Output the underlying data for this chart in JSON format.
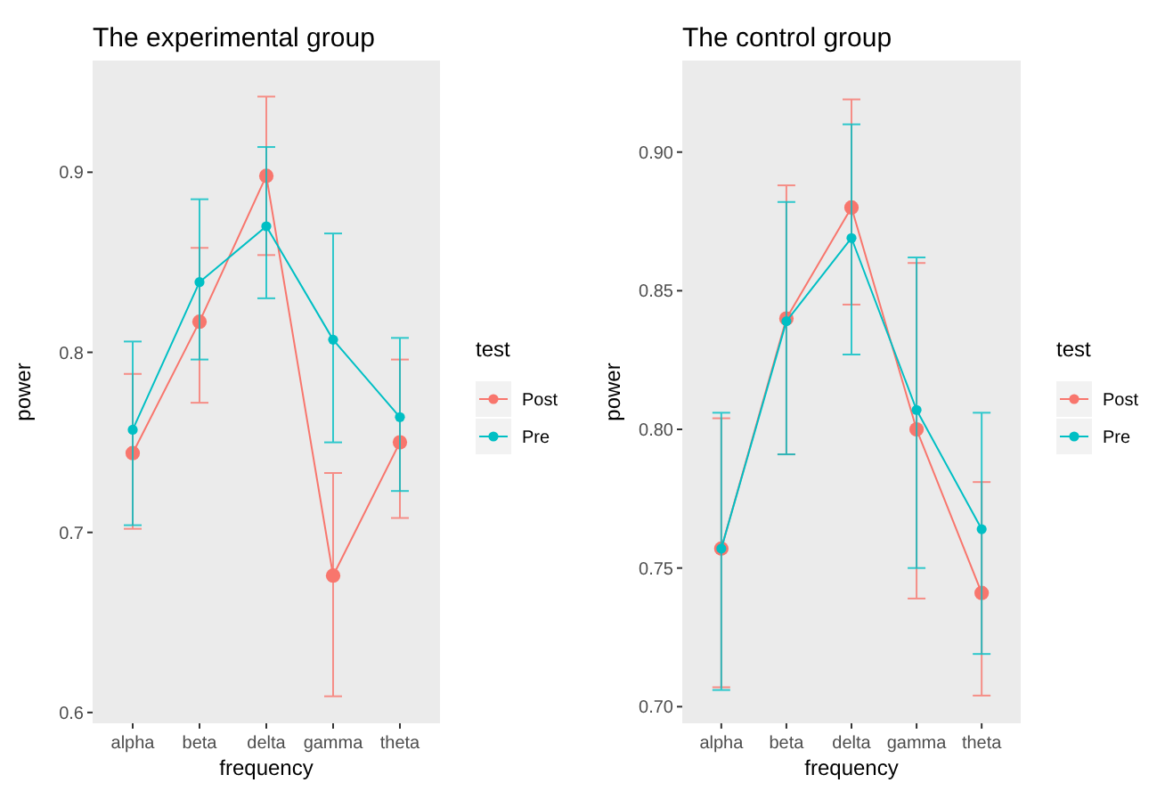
{
  "chart_data": [
    {
      "type": "line",
      "title": "The experimental group",
      "xlabel": "frequency",
      "ylabel": "power",
      "legend_title": "test",
      "legend": "right",
      "marker": "circle",
      "grid": false,
      "categories": [
        "alpha",
        "beta",
        "delta",
        "gamma",
        "theta"
      ],
      "ylim": [
        0.594,
        0.962
      ],
      "yticks": [
        {
          "value": 0.6,
          "label": "0.6"
        },
        {
          "value": 0.7,
          "label": "0.7"
        },
        {
          "value": 0.8,
          "label": "0.8"
        },
        {
          "value": 0.9,
          "label": "0.9"
        }
      ],
      "series": [
        {
          "name": "Post",
          "color": "#f8766d",
          "values": [
            0.744,
            0.817,
            0.898,
            0.676,
            0.75
          ],
          "errors": [
            [
              0.702,
              0.788
            ],
            [
              0.772,
              0.858
            ],
            [
              0.854,
              0.942
            ],
            [
              0.609,
              0.733
            ],
            [
              0.708,
              0.796
            ]
          ]
        },
        {
          "name": "Pre",
          "color": "#00bfc4",
          "values": [
            0.757,
            0.839,
            0.87,
            0.807,
            0.764
          ],
          "errors": [
            [
              0.704,
              0.806
            ],
            [
              0.796,
              0.885
            ],
            [
              0.83,
              0.914
            ],
            [
              0.75,
              0.866
            ],
            [
              0.723,
              0.808
            ]
          ]
        }
      ]
    },
    {
      "type": "line",
      "title": "The control group",
      "xlabel": "frequency",
      "ylabel": "power",
      "legend_title": "test",
      "legend": "right",
      "marker": "circle",
      "grid": false,
      "categories": [
        "alpha",
        "beta",
        "delta",
        "gamma",
        "theta"
      ],
      "ylim": [
        0.694,
        0.933
      ],
      "yticks": [
        {
          "value": 0.7,
          "label": "0.70"
        },
        {
          "value": 0.75,
          "label": "0.75"
        },
        {
          "value": 0.8,
          "label": "0.80"
        },
        {
          "value": 0.85,
          "label": "0.85"
        },
        {
          "value": 0.9,
          "label": "0.90"
        }
      ],
      "series": [
        {
          "name": "Post",
          "color": "#f8766d",
          "values": [
            0.757,
            0.84,
            0.88,
            0.8,
            0.741
          ],
          "errors": [
            [
              0.707,
              0.804
            ],
            [
              0.791,
              0.888
            ],
            [
              0.845,
              0.919
            ],
            [
              0.739,
              0.86
            ],
            [
              0.704,
              0.781
            ]
          ]
        },
        {
          "name": "Pre",
          "color": "#00bfc4",
          "values": [
            0.757,
            0.839,
            0.869,
            0.807,
            0.764
          ],
          "errors": [
            [
              0.706,
              0.806
            ],
            [
              0.791,
              0.882
            ],
            [
              0.827,
              0.91
            ],
            [
              0.75,
              0.862
            ],
            [
              0.719,
              0.806
            ]
          ]
        }
      ]
    }
  ]
}
